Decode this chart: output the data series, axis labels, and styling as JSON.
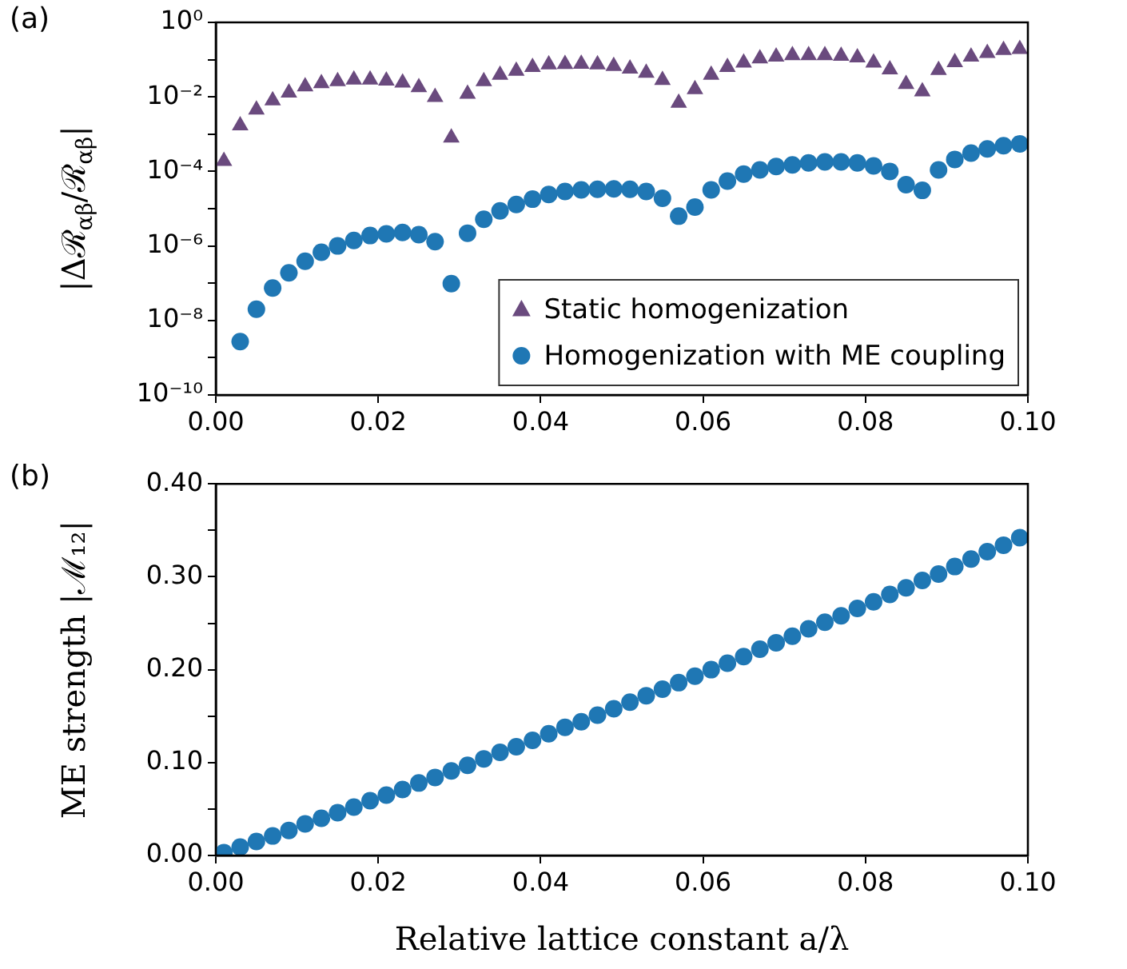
{
  "chart_data": [
    {
      "type": "scatter",
      "ylabel": "|Δℛ$_{αβ}$/ℛ$_{αβ}$|",
      "annotations": [
        "(a)"
      ],
      "log": "y",
      "grid": false,
      "legend": "bottom right",
      "x": [
        0.001,
        0.003,
        0.005,
        0.007,
        0.009,
        0.011,
        0.013,
        0.015,
        0.017,
        0.019,
        0.021,
        0.023,
        0.025,
        0.027,
        0.029,
        0.031,
        0.033,
        0.035,
        0.037,
        0.039,
        0.041,
        0.043,
        0.045,
        0.047,
        0.049,
        0.051,
        0.053,
        0.055,
        0.057,
        0.059,
        0.061,
        0.063,
        0.065,
        0.067,
        0.069,
        0.071,
        0.073,
        0.075,
        0.077,
        0.079,
        0.081,
        0.083,
        0.085,
        0.087,
        0.089,
        0.091,
        0.093,
        0.095,
        0.097,
        0.099
      ],
      "xlim": [
        0,
        0.1
      ],
      "xticks": [
        {
          "value": 0,
          "label": "0.00"
        },
        {
          "value": 0.02,
          "label": "0.02"
        },
        {
          "value": 0.04,
          "label": "0.04"
        },
        {
          "value": 0.06,
          "label": "0.06"
        },
        {
          "value": 0.08,
          "label": "0.08"
        },
        {
          "value": 0.1,
          "label": "0.10"
        }
      ],
      "ylim": [
        1e-10,
        1
      ],
      "yticks": [
        {
          "value": 1e-10,
          "label": "10⁻¹⁰"
        },
        {
          "value": 1e-09,
          "label": null
        },
        {
          "value": 1e-08,
          "label": "10⁻⁸"
        },
        {
          "value": 1e-07,
          "label": null
        },
        {
          "value": 1e-06,
          "label": "10⁻⁶"
        },
        {
          "value": 1e-05,
          "label": null
        },
        {
          "value": 0.0001,
          "label": "10⁻⁴"
        },
        {
          "value": 0.001,
          "label": null
        },
        {
          "value": 0.01,
          "label": "10⁻²"
        },
        {
          "value": 0.1,
          "label": null
        },
        {
          "value": 1,
          "label": "10⁰"
        }
      ],
      "series": [
        {
          "name": "Static homogenization",
          "color": "#6a4a7e",
          "marker": "triangle",
          "values": [
            0.00019,
            0.0017,
            0.0045,
            0.008,
            0.013,
            0.019,
            0.023,
            0.026,
            0.029,
            0.029,
            0.027,
            0.024,
            0.018,
            0.0098,
            0.0008,
            0.012,
            0.026,
            0.039,
            0.05,
            0.063,
            0.074,
            0.076,
            0.077,
            0.074,
            0.067,
            0.057,
            0.044,
            0.028,
            0.0069,
            0.016,
            0.039,
            0.063,
            0.082,
            0.107,
            0.12,
            0.13,
            0.13,
            0.13,
            0.125,
            0.114,
            0.082,
            0.054,
            0.022,
            0.014,
            0.052,
            0.085,
            0.12,
            0.15,
            0.18,
            0.19
          ]
        },
        {
          "name": "Homogenization with ME coupling",
          "color": "#1f77b4",
          "marker": "circle",
          "values": [
            null,
            2.7e-09,
            2e-08,
            7.4e-08,
            1.9e-07,
            3.9e-07,
            6.8e-07,
            1e-06,
            1.4e-06,
            1.9e-06,
            2.1e-06,
            2.3e-06,
            2e-06,
            1.3e-06,
            9.7e-08,
            2.2e-06,
            5.2e-06,
            8.7e-06,
            1.3e-05,
            1.8e-05,
            2.4e-05,
            2.9e-05,
            3.2e-05,
            3.3e-05,
            3.4e-05,
            3.3e-05,
            2.9e-05,
            1.9e-05,
            6.3e-06,
            1.1e-05,
            3.2e-05,
            5.5e-05,
            8.5e-05,
            0.00011,
            0.000135,
            0.00015,
            0.00017,
            0.00018,
            0.00018,
            0.00017,
            0.00014,
            0.0001,
            4.4e-05,
            3.1e-05,
            0.00011,
            0.00021,
            0.00031,
            0.0004,
            0.00049,
            0.00055
          ]
        }
      ]
    },
    {
      "type": "scatter",
      "xlabel": "Relative lattice constant a/λ",
      "ylabel": "ME strength |ℳ₁₂|",
      "annotations": [
        "(b)"
      ],
      "grid": false,
      "x": [
        0.001,
        0.003,
        0.005,
        0.007,
        0.009,
        0.011,
        0.013,
        0.015,
        0.017,
        0.019,
        0.021,
        0.023,
        0.025,
        0.027,
        0.029,
        0.031,
        0.033,
        0.035,
        0.037,
        0.039,
        0.041,
        0.043,
        0.045,
        0.047,
        0.049,
        0.051,
        0.053,
        0.055,
        0.057,
        0.059,
        0.061,
        0.063,
        0.065,
        0.067,
        0.069,
        0.071,
        0.073,
        0.075,
        0.077,
        0.079,
        0.081,
        0.083,
        0.085,
        0.087,
        0.089,
        0.091,
        0.093,
        0.095,
        0.097,
        0.099
      ],
      "xlim": [
        0,
        0.1
      ],
      "xticks": [
        {
          "value": 0,
          "label": "0.00"
        },
        {
          "value": 0.02,
          "label": "0.02"
        },
        {
          "value": 0.04,
          "label": "0.04"
        },
        {
          "value": 0.06,
          "label": "0.06"
        },
        {
          "value": 0.08,
          "label": "0.08"
        },
        {
          "value": 0.1,
          "label": "0.10"
        }
      ],
      "ylim": [
        0,
        0.4
      ],
      "yticks": [
        {
          "value": 0,
          "label": "0.00"
        },
        {
          "value": 0.05,
          "label": null
        },
        {
          "value": 0.1,
          "label": "0.10"
        },
        {
          "value": 0.15,
          "label": null
        },
        {
          "value": 0.2,
          "label": "0.20"
        },
        {
          "value": 0.25,
          "label": null
        },
        {
          "value": 0.3,
          "label": "0.30"
        },
        {
          "value": 0.35,
          "label": null
        },
        {
          "value": 0.4,
          "label": "0.40"
        }
      ],
      "series": [
        {
          "color": "#1f77b4",
          "marker": "circle",
          "values": [
            0.003,
            0.009,
            0.015,
            0.021,
            0.027,
            0.034,
            0.04,
            0.046,
            0.052,
            0.059,
            0.065,
            0.071,
            0.078,
            0.084,
            0.091,
            0.097,
            0.104,
            0.111,
            0.117,
            0.124,
            0.131,
            0.138,
            0.144,
            0.151,
            0.158,
            0.165,
            0.172,
            0.179,
            0.186,
            0.193,
            0.2,
            0.207,
            0.214,
            0.222,
            0.229,
            0.236,
            0.244,
            0.251,
            0.258,
            0.266,
            0.273,
            0.281,
            0.288,
            0.296,
            0.303,
            0.311,
            0.319,
            0.327,
            0.334,
            0.342
          ]
        }
      ]
    }
  ]
}
